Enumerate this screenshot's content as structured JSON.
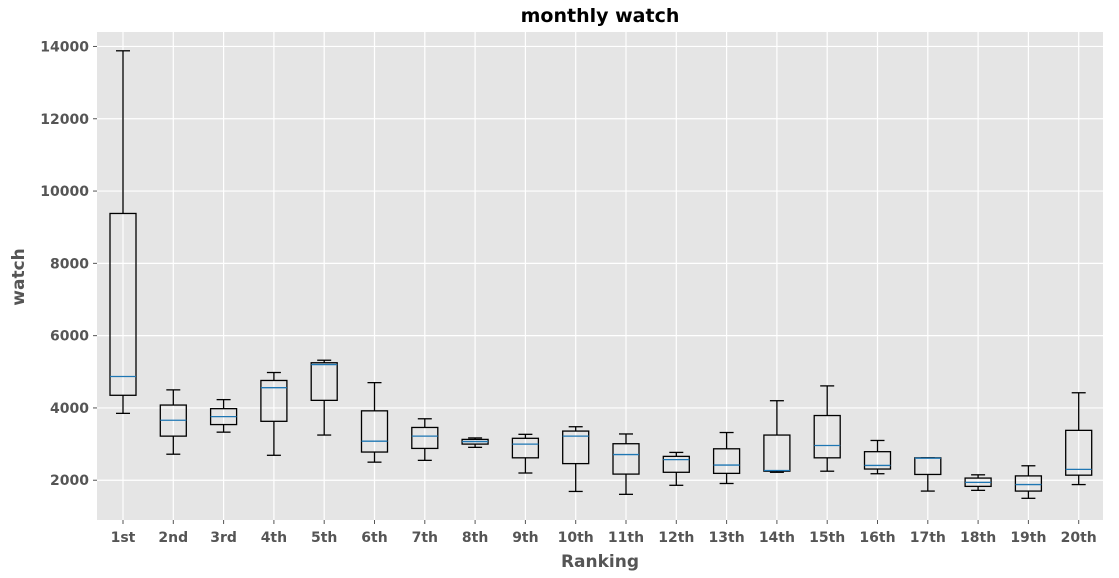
{
  "chart_data": {
    "type": "box",
    "title": "monthly watch",
    "xlabel": "Ranking",
    "ylabel": "watch",
    "ylim": [
      900,
      14400
    ],
    "yticks": [
      2000,
      4000,
      6000,
      8000,
      10000,
      12000,
      14000
    ],
    "grid": true,
    "colors": {
      "plot_background": "#e5e5e5",
      "grid": "#ffffff",
      "box": "#000000",
      "median": "#1f77b4",
      "text": "#555555"
    },
    "categories": [
      "1st",
      "2nd",
      "3rd",
      "4th",
      "5th",
      "6th",
      "7th",
      "8th",
      "9th",
      "10th",
      "11th",
      "12th",
      "13th",
      "14th",
      "15th",
      "16th",
      "17th",
      "18th",
      "19th",
      "20th"
    ],
    "boxes": [
      {
        "whislo": 3850,
        "q1": 4350,
        "med": 4870,
        "q3": 9380,
        "whishi": 13880
      },
      {
        "whislo": 2720,
        "q1": 3220,
        "med": 3660,
        "q3": 4080,
        "whishi": 4500
      },
      {
        "whislo": 3330,
        "q1": 3540,
        "med": 3760,
        "q3": 3980,
        "whishi": 4230
      },
      {
        "whislo": 2690,
        "q1": 3630,
        "med": 4560,
        "q3": 4760,
        "whishi": 4980
      },
      {
        "whislo": 3250,
        "q1": 4210,
        "med": 5200,
        "q3": 5250,
        "whishi": 5320
      },
      {
        "whislo": 2500,
        "q1": 2780,
        "med": 3080,
        "q3": 3920,
        "whishi": 4700
      },
      {
        "whislo": 2550,
        "q1": 2880,
        "med": 3220,
        "q3": 3460,
        "whishi": 3700
      },
      {
        "whislo": 2910,
        "q1": 3000,
        "med": 3070,
        "q3": 3130,
        "whishi": 3170
      },
      {
        "whislo": 2200,
        "q1": 2620,
        "med": 3000,
        "q3": 3160,
        "whishi": 3270
      },
      {
        "whislo": 1690,
        "q1": 2460,
        "med": 3220,
        "q3": 3360,
        "whishi": 3480
      },
      {
        "whislo": 1610,
        "q1": 2170,
        "med": 2710,
        "q3": 3010,
        "whishi": 3280
      },
      {
        "whislo": 1860,
        "q1": 2220,
        "med": 2570,
        "q3": 2660,
        "whishi": 2770
      },
      {
        "whislo": 1910,
        "q1": 2190,
        "med": 2420,
        "q3": 2870,
        "whishi": 3320
      },
      {
        "whislo": 2220,
        "q1": 2250,
        "med": 2270,
        "q3": 3250,
        "whishi": 4200
      },
      {
        "whislo": 2250,
        "q1": 2620,
        "med": 2960,
        "q3": 3790,
        "whishi": 4610
      },
      {
        "whislo": 2180,
        "q1": 2310,
        "med": 2410,
        "q3": 2790,
        "whishi": 3100
      },
      {
        "whislo": 1700,
        "q1": 2160,
        "med": 2610,
        "q3": 2620,
        "whishi": 2620
      },
      {
        "whislo": 1720,
        "q1": 1830,
        "med": 1940,
        "q3": 2060,
        "whishi": 2150
      },
      {
        "whislo": 1500,
        "q1": 1700,
        "med": 1880,
        "q3": 2120,
        "whishi": 2400
      },
      {
        "whislo": 1880,
        "q1": 2140,
        "med": 2300,
        "q3": 3380,
        "whishi": 4420
      }
    ]
  }
}
